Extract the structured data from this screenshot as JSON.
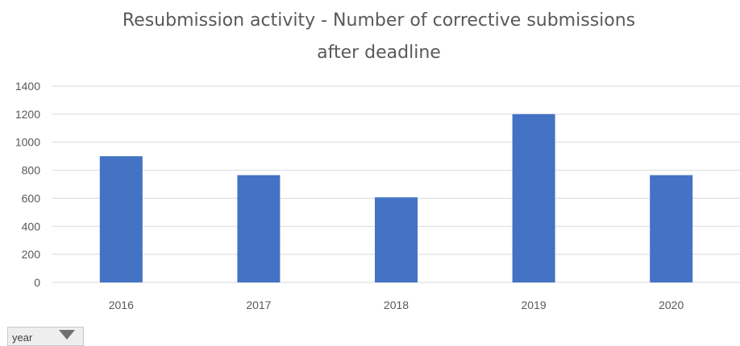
{
  "chart_data": {
    "type": "bar",
    "title_lines": [
      "Resubmission activity - Number of corrective submissions",
      "after deadline"
    ],
    "categories": [
      "2016",
      "2017",
      "2018",
      "2019",
      "2020"
    ],
    "values": [
      900,
      765,
      607,
      1200,
      765
    ],
    "ylim": [
      0,
      1400
    ],
    "yticks": [
      0,
      200,
      400,
      600,
      800,
      1000,
      1200,
      1400
    ],
    "grid": true,
    "bar_color": "#4472C4"
  },
  "filter": {
    "label": "year",
    "icon": "filter-dropdown-icon"
  }
}
